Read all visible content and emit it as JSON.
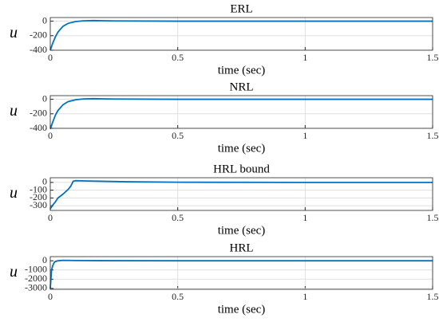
{
  "chart_data": [
    {
      "type": "line",
      "title": "ERL",
      "xlabel": "time (sec)",
      "ylabel": "u",
      "color": "#0072bd",
      "grid": true,
      "x": [
        0,
        0.01,
        0.02,
        0.03,
        0.05,
        0.07,
        0.1,
        0.13,
        0.17,
        0.25,
        0.5,
        1,
        1.5
      ],
      "values": [
        -400,
        -300,
        -215,
        -150,
        -70,
        -30,
        -5,
        5,
        8,
        3,
        0,
        0,
        0
      ],
      "xlim": [
        0,
        1.5
      ],
      "xticks": [
        0,
        0.5,
        1,
        1.5
      ],
      "ylim": [
        -400,
        50
      ],
      "yticks": [
        -400,
        -200,
        0
      ]
    },
    {
      "type": "line",
      "title": "NRL",
      "xlabel": "time (sec)",
      "ylabel": "u",
      "color": "#0072bd",
      "grid": true,
      "x": [
        0,
        0.01,
        0.02,
        0.03,
        0.05,
        0.07,
        0.1,
        0.13,
        0.17,
        0.25,
        0.5,
        1,
        1.5
      ],
      "values": [
        -410,
        -310,
        -220,
        -155,
        -75,
        -32,
        -6,
        5,
        8,
        3,
        0,
        0,
        0
      ],
      "xlim": [
        0,
        1.5
      ],
      "xticks": [
        0,
        0.5,
        1,
        1.5
      ],
      "ylim": [
        -400,
        50
      ],
      "yticks": [
        -400,
        -200,
        0
      ]
    },
    {
      "type": "line",
      "title": "HRL bound",
      "xlabel": "time (sec)",
      "ylabel": "u",
      "color": "#0072bd",
      "grid": true,
      "x": [
        0,
        0.01,
        0.02,
        0.03,
        0.05,
        0.07,
        0.08,
        0.09,
        0.1,
        0.15,
        0.3,
        0.5,
        1,
        1.5
      ],
      "values": [
        -340,
        -290,
        -250,
        -200,
        -150,
        -90,
        -50,
        15,
        22,
        18,
        8,
        2,
        0,
        0
      ],
      "xlim": [
        0,
        1.5
      ],
      "xticks": [
        0,
        0.5,
        1,
        1.5
      ],
      "ylim": [
        -360,
        60
      ],
      "yticks": [
        -300,
        -200,
        -100,
        0
      ]
    },
    {
      "type": "line",
      "title": "HRL",
      "xlabel": "time (sec)",
      "ylabel": "u",
      "color": "#0072bd",
      "grid": true,
      "x": [
        0,
        0.005,
        0.01,
        0.015,
        0.02,
        0.03,
        0.05,
        0.1,
        0.2,
        0.5,
        1,
        1.5
      ],
      "values": [
        -3000,
        -1000,
        -500,
        -200,
        -80,
        0,
        50,
        30,
        10,
        0,
        0,
        0
      ],
      "xlim": [
        0,
        1.5
      ],
      "xticks": [
        0,
        0.5,
        1,
        1.5
      ],
      "ylim": [
        -3100,
        450
      ],
      "yticks": [
        -3000,
        -2000,
        -1000,
        0
      ]
    }
  ]
}
